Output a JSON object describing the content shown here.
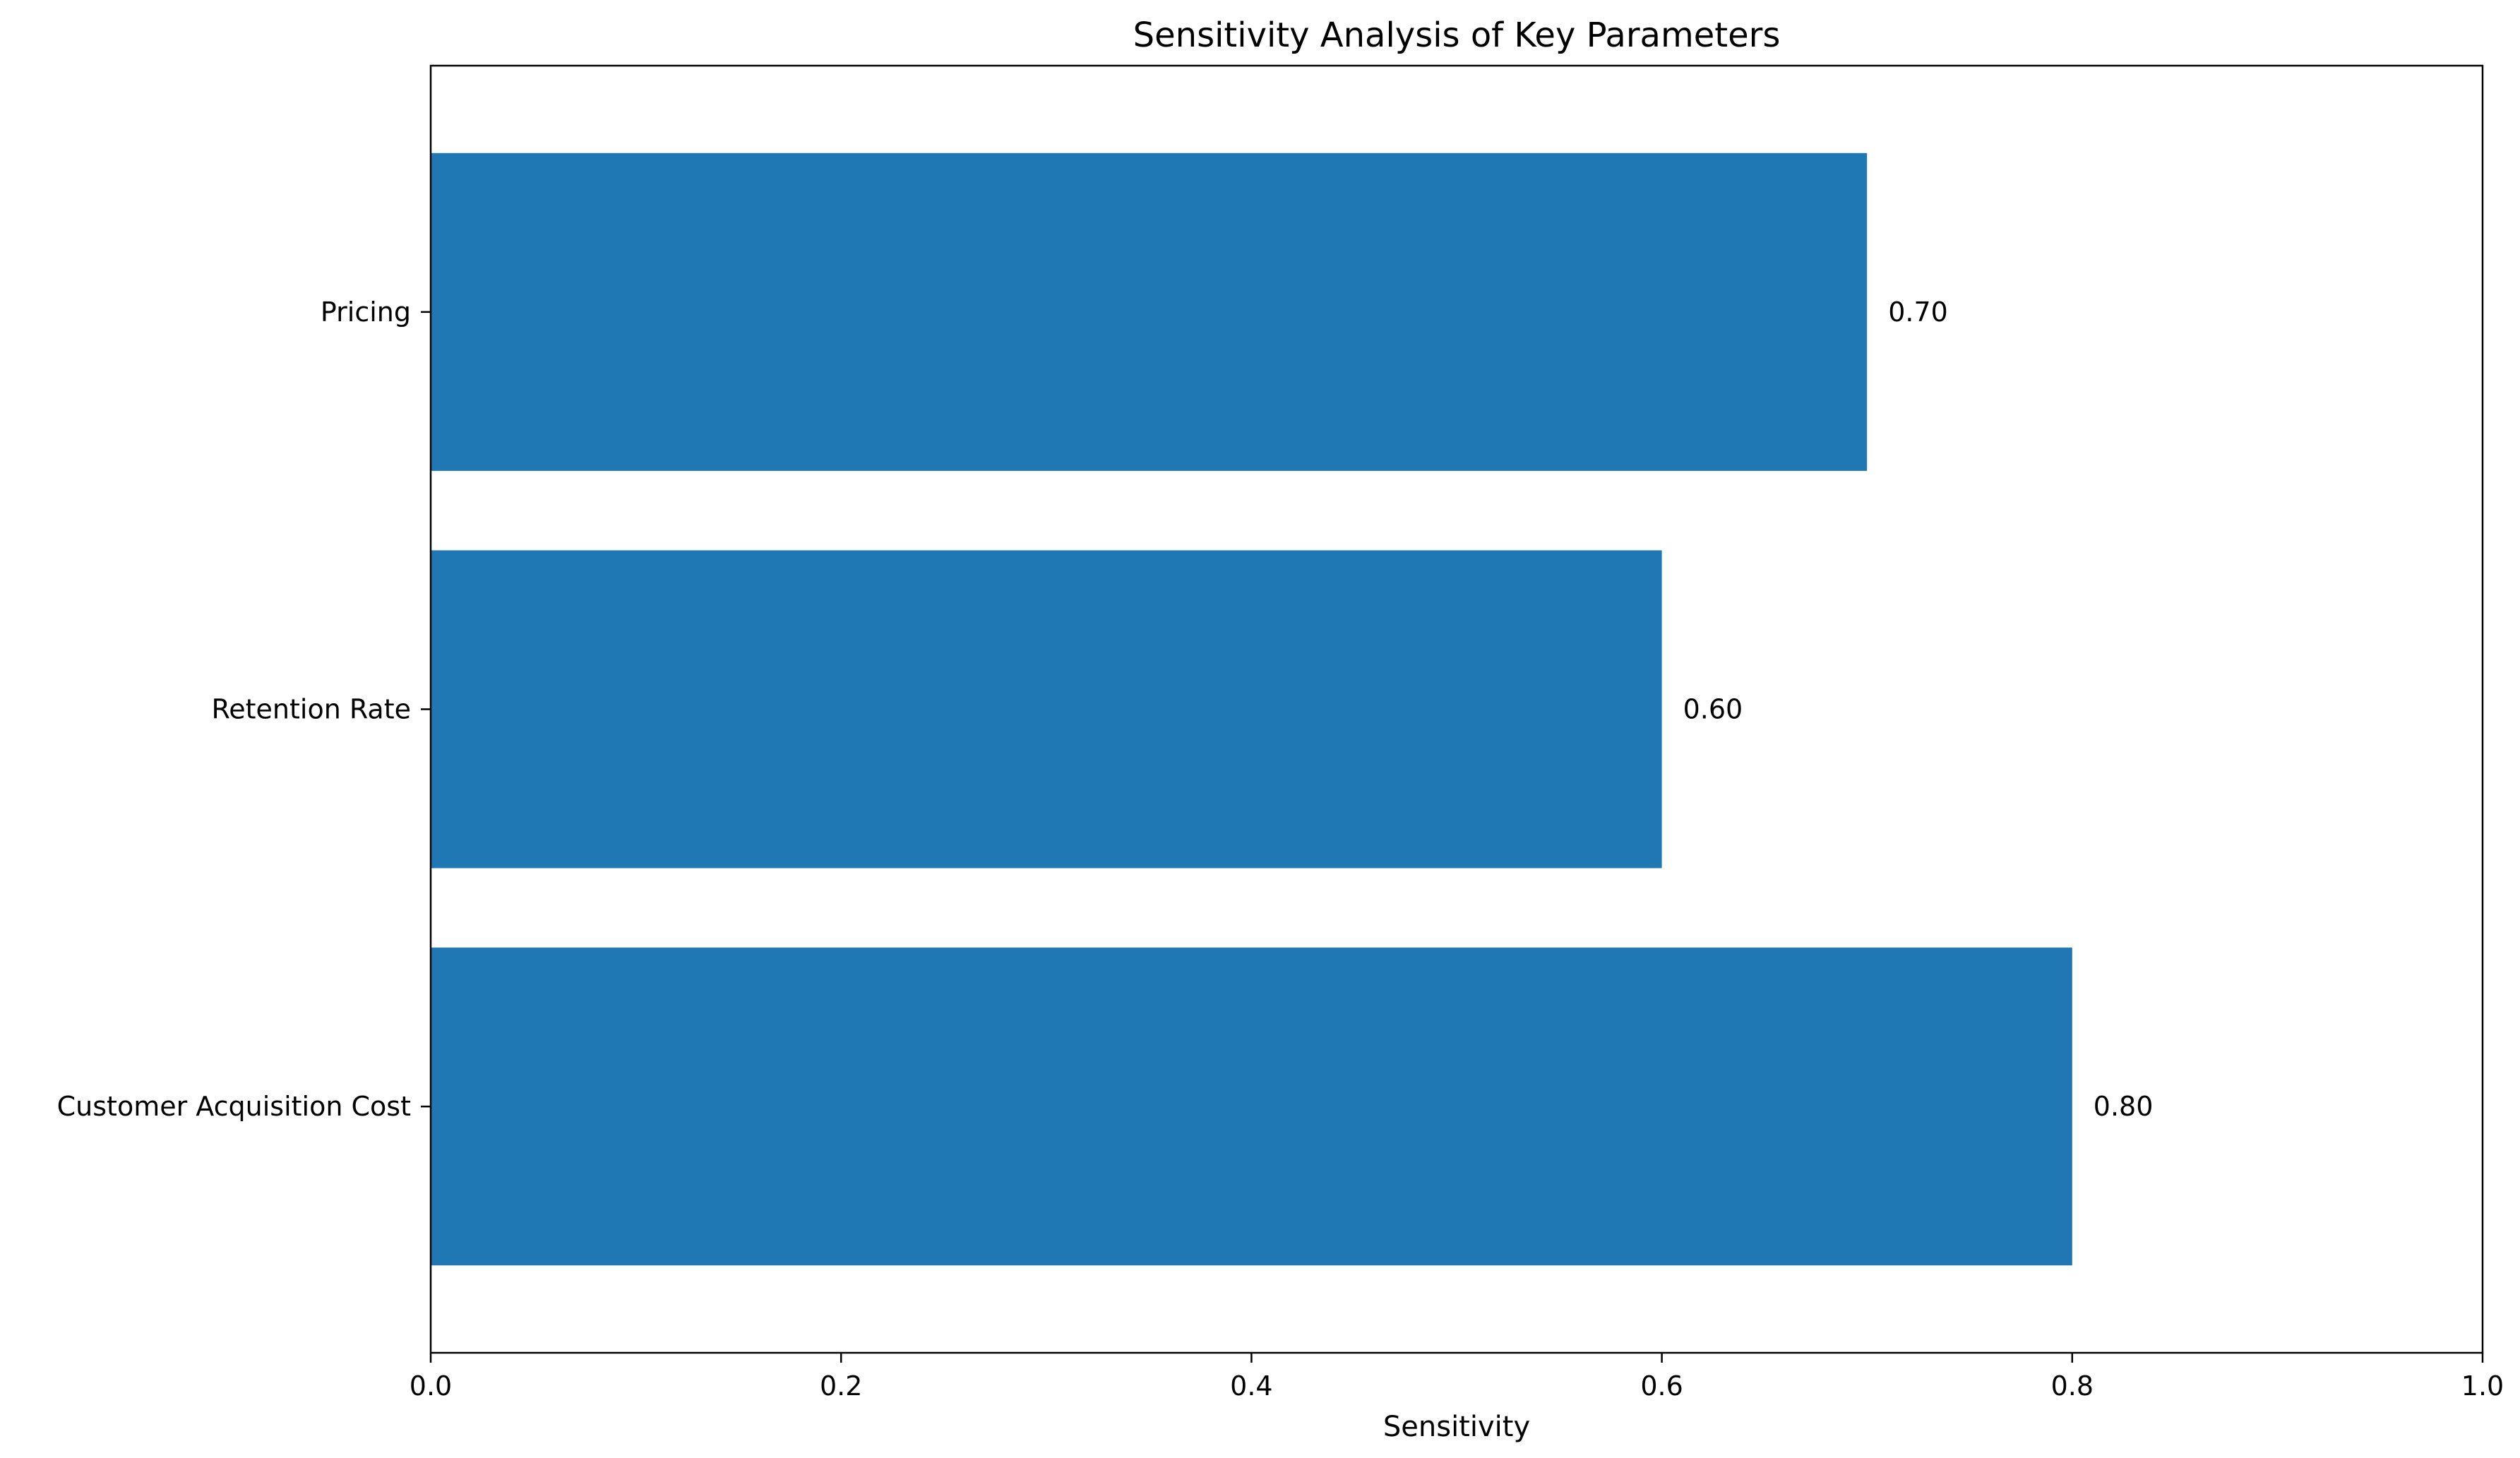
{
  "chart_data": {
    "type": "bar",
    "orientation": "horizontal",
    "title": "Sensitivity Analysis of Key Parameters",
    "xlabel": "Sensitivity",
    "ylabel": "",
    "categories": [
      "Customer Acquisition Cost",
      "Retention Rate",
      "Pricing"
    ],
    "values": [
      0.8,
      0.6,
      0.7
    ],
    "value_labels": [
      "0.80",
      "0.60",
      "0.70"
    ],
    "xlim": [
      0,
      1.0
    ],
    "xticks": [
      0.0,
      0.2,
      0.4,
      0.6,
      0.8,
      1.0
    ],
    "xtick_labels": [
      "0.0",
      "0.2",
      "0.4",
      "0.6",
      "0.8",
      "1.0"
    ],
    "grid": false,
    "bar_color": "#1f77b4"
  }
}
